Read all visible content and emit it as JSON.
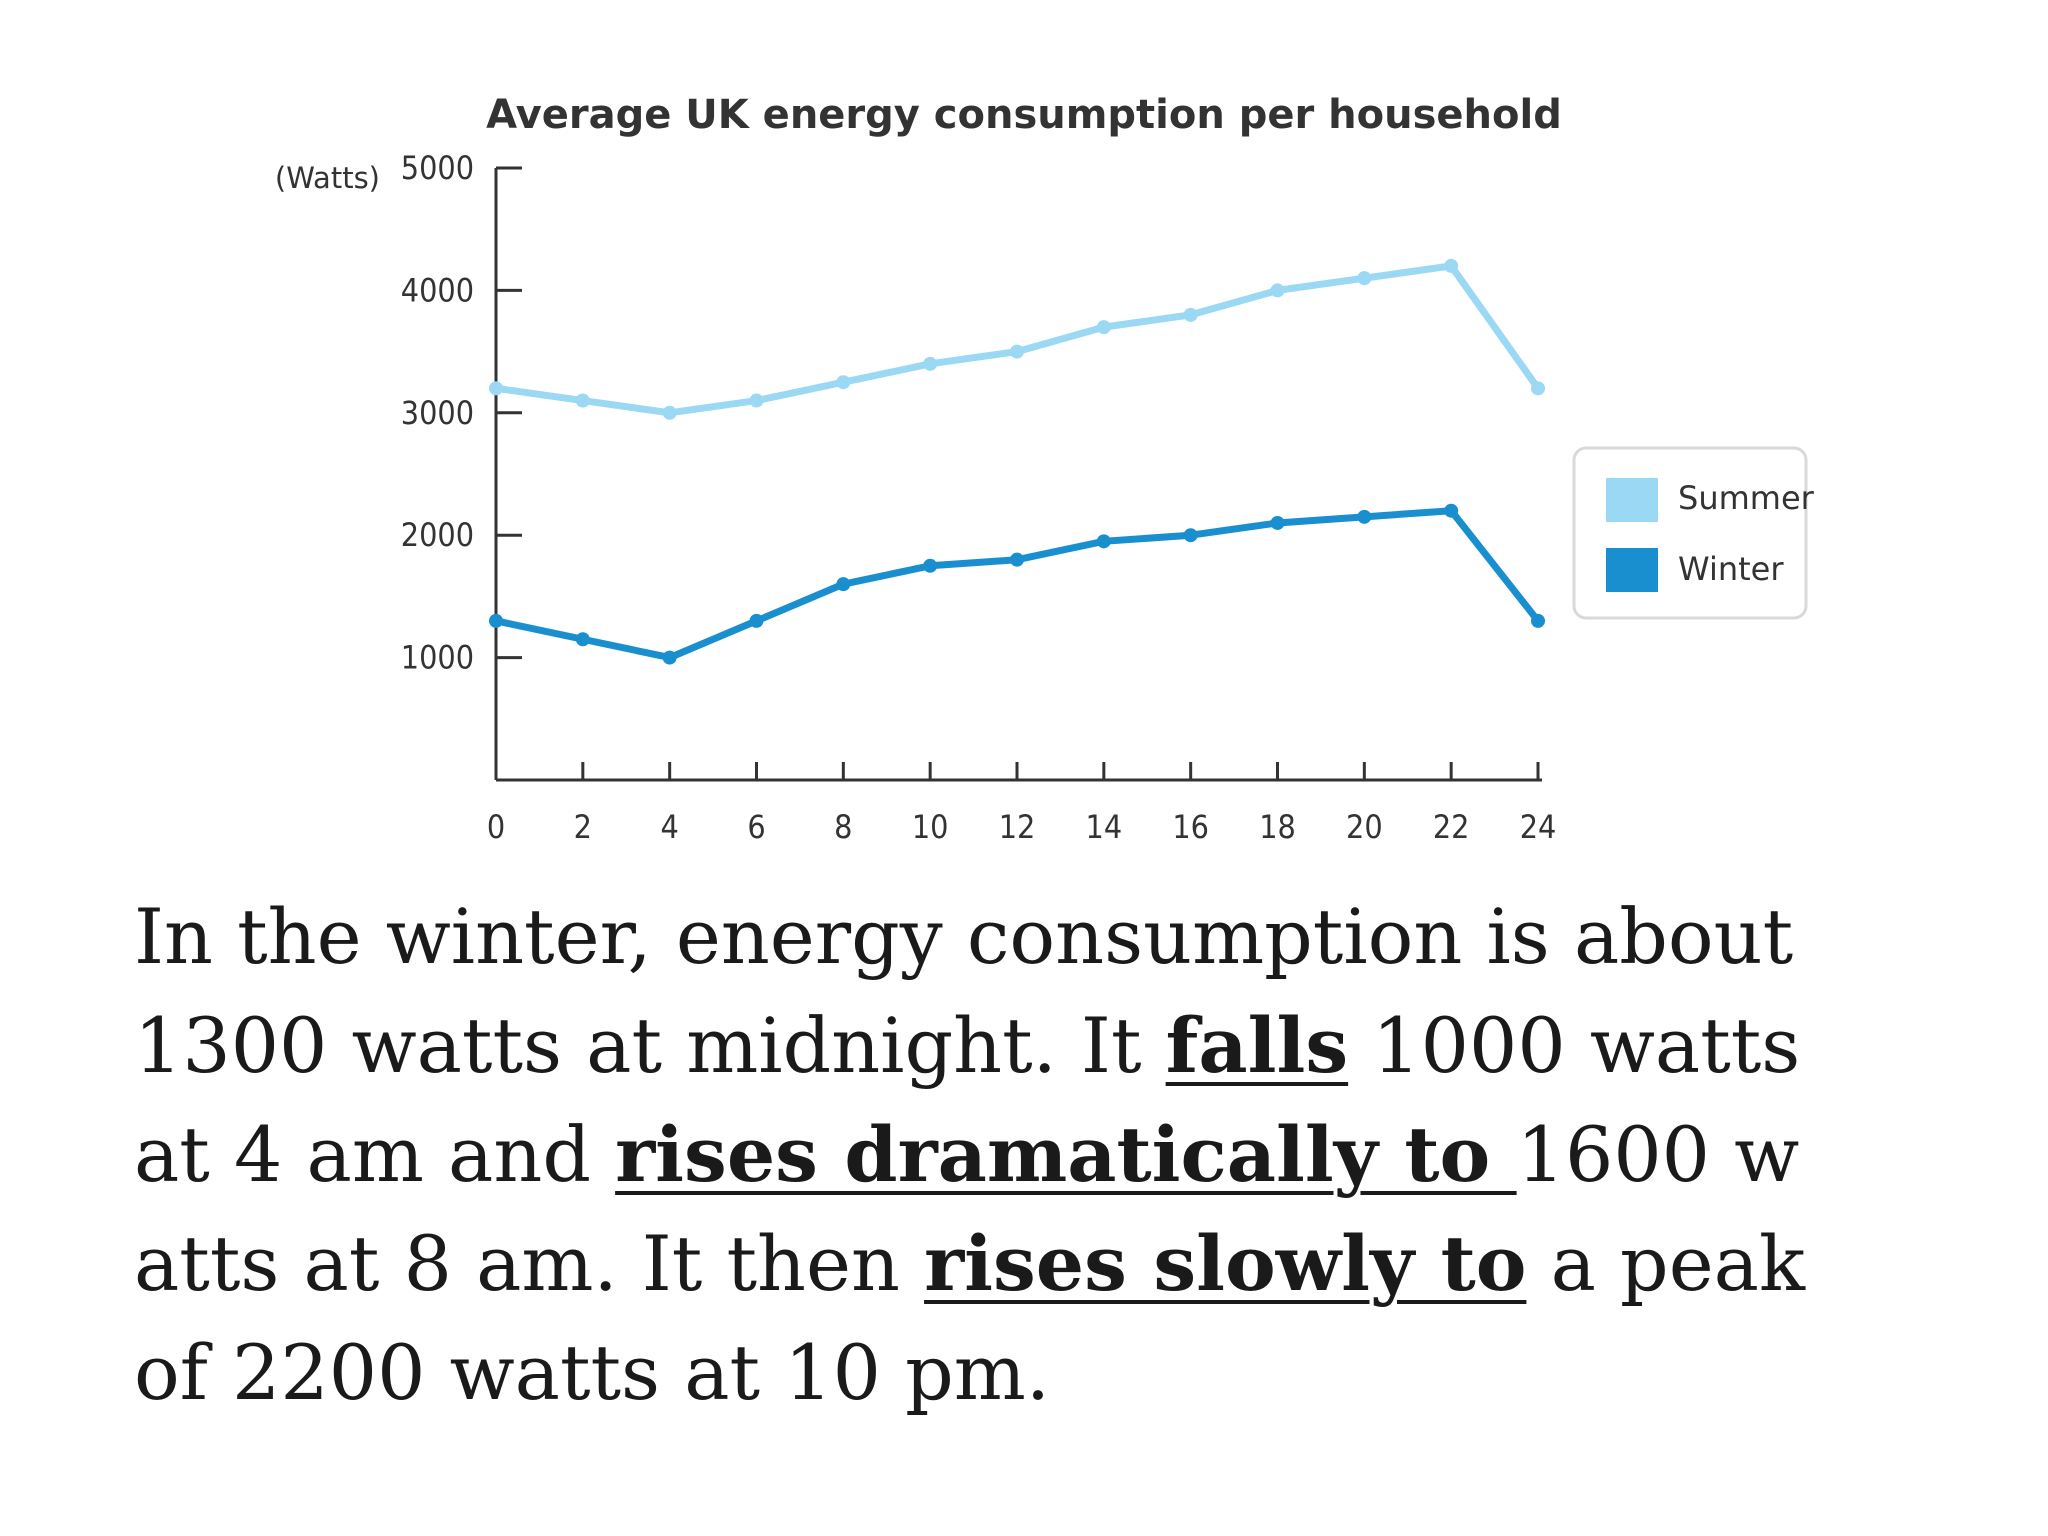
{
  "chart_data": {
    "type": "line",
    "title": "Average UK energy consumption per household",
    "y_unit_label": "(Watts)",
    "x": [
      0,
      2,
      4,
      6,
      8,
      10,
      12,
      14,
      16,
      18,
      20,
      22,
      24
    ],
    "x_ticks": [
      "0",
      "2",
      "4",
      "6",
      "8",
      "10",
      "12",
      "14",
      "16",
      "18",
      "20",
      "22",
      "24"
    ],
    "y_ticks": [
      "1000",
      "2000",
      "3000",
      "4000",
      "5000"
    ],
    "ylim": [
      0,
      5000
    ],
    "xlim": [
      0,
      24
    ],
    "grid": false,
    "legend_position": "right",
    "series": [
      {
        "name": "Summer",
        "color": "#9ad8f4",
        "values": [
          3200,
          3100,
          3000,
          3100,
          3250,
          3400,
          3500,
          3700,
          3800,
          4000,
          4100,
          4200,
          3200
        ]
      },
      {
        "name": "Winter",
        "color": "#1a8fd0",
        "values": [
          1300,
          1150,
          1000,
          1300,
          1600,
          1750,
          1800,
          1950,
          2000,
          2100,
          2150,
          2200,
          1300
        ]
      }
    ]
  },
  "paragraph": {
    "s1": "In the winter, energy consumption is about\n1300 watts at midnight. It ",
    "k1": "falls",
    "s2": " 1000 watts\nat 4 am and ",
    "k2": "rises dramatically to ",
    "s3": "1600 w\natts at 8 am. It then ",
    "k3": "rises slowly to",
    "s4": " a peak\nof 2200 watts at 10 pm."
  }
}
